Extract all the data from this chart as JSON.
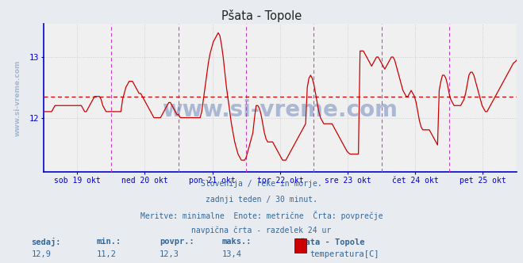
{
  "title": "Pšata - Topole",
  "bg_color": "#e8ecf0",
  "plot_bg_color": "#f0f0f0",
  "line_color": "#cc0000",
  "avg_line_color": "#cc0000",
  "axis_color": "#0000cc",
  "grid_color": "#c8c8c8",
  "vline_color": "#cc44cc",
  "text_color": "#336699",
  "title_color": "#333333",
  "xlabel_labels": [
    "sob 19 okt",
    "ned 20 okt",
    "pon 21 okt",
    "tor 22 okt",
    "sre 23 okt",
    "čet 24 okt",
    "pet 25 okt"
  ],
  "ymin": 11.2,
  "ymax": 13.4,
  "ylim_min": 11.1,
  "ylim_max": 13.55,
  "avg_value": 12.35,
  "info_lines": [
    "Slovenija / reke in morje.",
    "zadnji teden / 30 minut.",
    "Meritve: minimalne  Enote: metrične  Črta: povprečje",
    "navpična črta - razdelek 24 ur"
  ],
  "stat_labels": [
    "sedaj:",
    "min.:",
    "povpr.:",
    "maks.:"
  ],
  "stat_values": [
    "12,9",
    "11,2",
    "12,3",
    "13,4"
  ],
  "legend_station": "Pšata - Topole",
  "legend_label": "temperatura[C]",
  "legend_color": "#cc0000",
  "watermark_v": "www.si-vreme.com",
  "watermark_h": "www.si-vreme.com",
  "watermark_color": "#4466aa",
  "watermark_alpha": 0.4,
  "n_days": 7,
  "temp_data": [
    12.1,
    12.1,
    12.1,
    12.1,
    12.1,
    12.1,
    12.15,
    12.2,
    12.2,
    12.2,
    12.2,
    12.2,
    12.2,
    12.2,
    12.2,
    12.2,
    12.2,
    12.2,
    12.2,
    12.2,
    12.2,
    12.2,
    12.2,
    12.2,
    12.15,
    12.1,
    12.1,
    12.15,
    12.2,
    12.25,
    12.3,
    12.35,
    12.35,
    12.35,
    12.35,
    12.3,
    12.2,
    12.15,
    12.1,
    12.1,
    12.1,
    12.1,
    12.1,
    12.1,
    12.1,
    12.1,
    12.1,
    12.1,
    12.3,
    12.4,
    12.5,
    12.55,
    12.6,
    12.6,
    12.6,
    12.55,
    12.5,
    12.45,
    12.4,
    12.4,
    12.35,
    12.3,
    12.25,
    12.2,
    12.15,
    12.1,
    12.05,
    12.0,
    12.0,
    12.0,
    12.0,
    12.0,
    12.05,
    12.1,
    12.15,
    12.2,
    12.25,
    12.25,
    12.2,
    12.15,
    12.1,
    12.05,
    12.05,
    12.0,
    12.0,
    12.0,
    12.0,
    12.0,
    12.0,
    12.0,
    12.0,
    12.0,
    12.0,
    12.0,
    12.0,
    12.0,
    12.1,
    12.3,
    12.5,
    12.7,
    12.9,
    13.05,
    13.15,
    13.25,
    13.3,
    13.35,
    13.4,
    13.35,
    13.2,
    13.0,
    12.75,
    12.5,
    12.3,
    12.1,
    11.9,
    11.75,
    11.6,
    11.5,
    11.4,
    11.35,
    11.3,
    11.3,
    11.3,
    11.35,
    11.45,
    11.55,
    11.65,
    11.75,
    12.0,
    12.2,
    12.2,
    12.15,
    12.05,
    11.9,
    11.75,
    11.65,
    11.6,
    11.6,
    11.6,
    11.6,
    11.55,
    11.5,
    11.45,
    11.4,
    11.35,
    11.3,
    11.3,
    11.3,
    11.35,
    11.4,
    11.45,
    11.5,
    11.55,
    11.6,
    11.65,
    11.7,
    11.75,
    11.8,
    11.85,
    11.9,
    12.5,
    12.65,
    12.7,
    12.65,
    12.55,
    12.4,
    12.25,
    12.1,
    12.0,
    11.95,
    11.9,
    11.9,
    11.9,
    11.9,
    11.9,
    11.9,
    11.85,
    11.8,
    11.75,
    11.7,
    11.65,
    11.6,
    11.55,
    11.5,
    11.45,
    11.42,
    11.4,
    11.4,
    11.4,
    11.4,
    11.4,
    11.4,
    13.1,
    13.1,
    13.1,
    13.05,
    13.0,
    12.95,
    12.9,
    12.85,
    12.9,
    12.95,
    13.0,
    13.0,
    12.95,
    12.9,
    12.85,
    12.8,
    12.85,
    12.9,
    12.95,
    13.0,
    13.0,
    12.95,
    12.85,
    12.75,
    12.65,
    12.55,
    12.45,
    12.4,
    12.35,
    12.35,
    12.4,
    12.45,
    12.4,
    12.35,
    12.25,
    12.1,
    11.95,
    11.85,
    11.8,
    11.8,
    11.8,
    11.8,
    11.8,
    11.75,
    11.7,
    11.65,
    11.6,
    11.55,
    12.45,
    12.6,
    12.7,
    12.7,
    12.65,
    12.55,
    12.4,
    12.3,
    12.25,
    12.2,
    12.2,
    12.2,
    12.2,
    12.2,
    12.25,
    12.3,
    12.4,
    12.55,
    12.7,
    12.75,
    12.75,
    12.7,
    12.6,
    12.5,
    12.4,
    12.3,
    12.2,
    12.15,
    12.1,
    12.1,
    12.15,
    12.2,
    12.25,
    12.3,
    12.35,
    12.4,
    12.45,
    12.5,
    12.55,
    12.6,
    12.65,
    12.7,
    12.75,
    12.8,
    12.85,
    12.9,
    12.92,
    12.95
  ]
}
